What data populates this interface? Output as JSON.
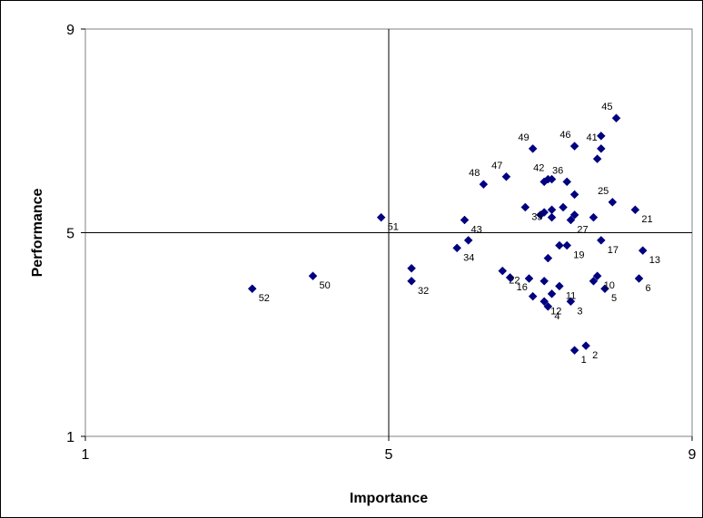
{
  "chart_data": {
    "type": "scatter",
    "title": "",
    "xlabel": "Importance",
    "ylabel": "Performance",
    "xlim": [
      1,
      9
    ],
    "ylim": [
      1,
      9
    ],
    "x_ticks": [
      "1",
      "5",
      "9"
    ],
    "y_ticks": [
      "1",
      "5",
      "9"
    ],
    "crosshair": {
      "x": 5,
      "y": 5
    },
    "grid": false,
    "legend": "none",
    "colors": {
      "marker": "#000080",
      "axis": "#000000",
      "plot_border": "#808080"
    },
    "points": [
      {
        "label": "1",
        "x": 7.45,
        "y": 2.69
      },
      {
        "label": "2",
        "x": 7.6,
        "y": 2.78
      },
      {
        "label": "3",
        "x": 7.4,
        "y": 3.65
      },
      {
        "label": "4",
        "x": 7.1,
        "y": 3.55
      },
      {
        "label": "5",
        "x": 7.85,
        "y": 3.9
      },
      {
        "label": "6",
        "x": 8.3,
        "y": 4.1
      },
      {
        "label": "10",
        "x": 7.75,
        "y": 4.15
      },
      {
        "label": "11",
        "x": 7.25,
        "y": 3.95
      },
      {
        "label": "12",
        "x": 7.05,
        "y": 3.65
      },
      {
        "label": "13",
        "x": 8.35,
        "y": 4.65
      },
      {
        "label": "16",
        "x": 6.6,
        "y": 4.12
      },
      {
        "label": "17",
        "x": 7.8,
        "y": 4.85
      },
      {
        "label": "19",
        "x": 7.35,
        "y": 4.75
      },
      {
        "label": "21",
        "x": 8.25,
        "y": 5.45
      },
      {
        "label": "22",
        "x": 6.5,
        "y": 4.25
      },
      {
        "label": "25",
        "x": 7.95,
        "y": 5.6
      },
      {
        "label": "27",
        "x": 7.4,
        "y": 5.25
      },
      {
        "label": "32",
        "x": 5.3,
        "y": 4.05
      },
      {
        "label": "34",
        "x": 5.9,
        "y": 4.7
      },
      {
        "label": "35",
        "x": 6.8,
        "y": 5.5
      },
      {
        "label": "36",
        "x": 7.35,
        "y": 6.0
      },
      {
        "label": "41",
        "x": 7.8,
        "y": 6.65
      },
      {
        "label": "42",
        "x": 7.1,
        "y": 6.05
      },
      {
        "label": "43",
        "x": 6.0,
        "y": 5.25
      },
      {
        "label": "45",
        "x": 8.0,
        "y": 7.25
      },
      {
        "label": "46",
        "x": 7.45,
        "y": 6.7
      },
      {
        "label": "47",
        "x": 6.55,
        "y": 6.1
      },
      {
        "label": "48",
        "x": 6.25,
        "y": 5.95
      },
      {
        "label": "49",
        "x": 6.9,
        "y": 6.65
      },
      {
        "label": "50",
        "x": 4.0,
        "y": 4.15
      },
      {
        "label": "51",
        "x": 4.9,
        "y": 5.3
      },
      {
        "label": "52",
        "x": 3.2,
        "y": 3.9
      }
    ],
    "unlabeled_points": [
      {
        "x": 7.05,
        "y": 4.05
      },
      {
        "x": 6.85,
        "y": 4.1
      },
      {
        "x": 6.9,
        "y": 3.75
      },
      {
        "x": 7.15,
        "y": 3.8
      },
      {
        "x": 7.7,
        "y": 4.05
      },
      {
        "x": 7.1,
        "y": 4.5
      },
      {
        "x": 7.25,
        "y": 4.75
      },
      {
        "x": 5.3,
        "y": 4.3
      },
      {
        "x": 6.05,
        "y": 4.85
      },
      {
        "x": 7.15,
        "y": 5.3
      },
      {
        "x": 7.05,
        "y": 5.4
      },
      {
        "x": 7.0,
        "y": 5.35
      },
      {
        "x": 7.15,
        "y": 5.45
      },
      {
        "x": 7.3,
        "y": 5.5
      },
      {
        "x": 7.45,
        "y": 5.75
      },
      {
        "x": 7.45,
        "y": 5.35
      },
      {
        "x": 7.7,
        "y": 5.3
      },
      {
        "x": 7.05,
        "y": 6.0
      },
      {
        "x": 7.15,
        "y": 6.05
      },
      {
        "x": 7.75,
        "y": 6.45
      },
      {
        "x": 7.8,
        "y": 6.9
      }
    ]
  }
}
